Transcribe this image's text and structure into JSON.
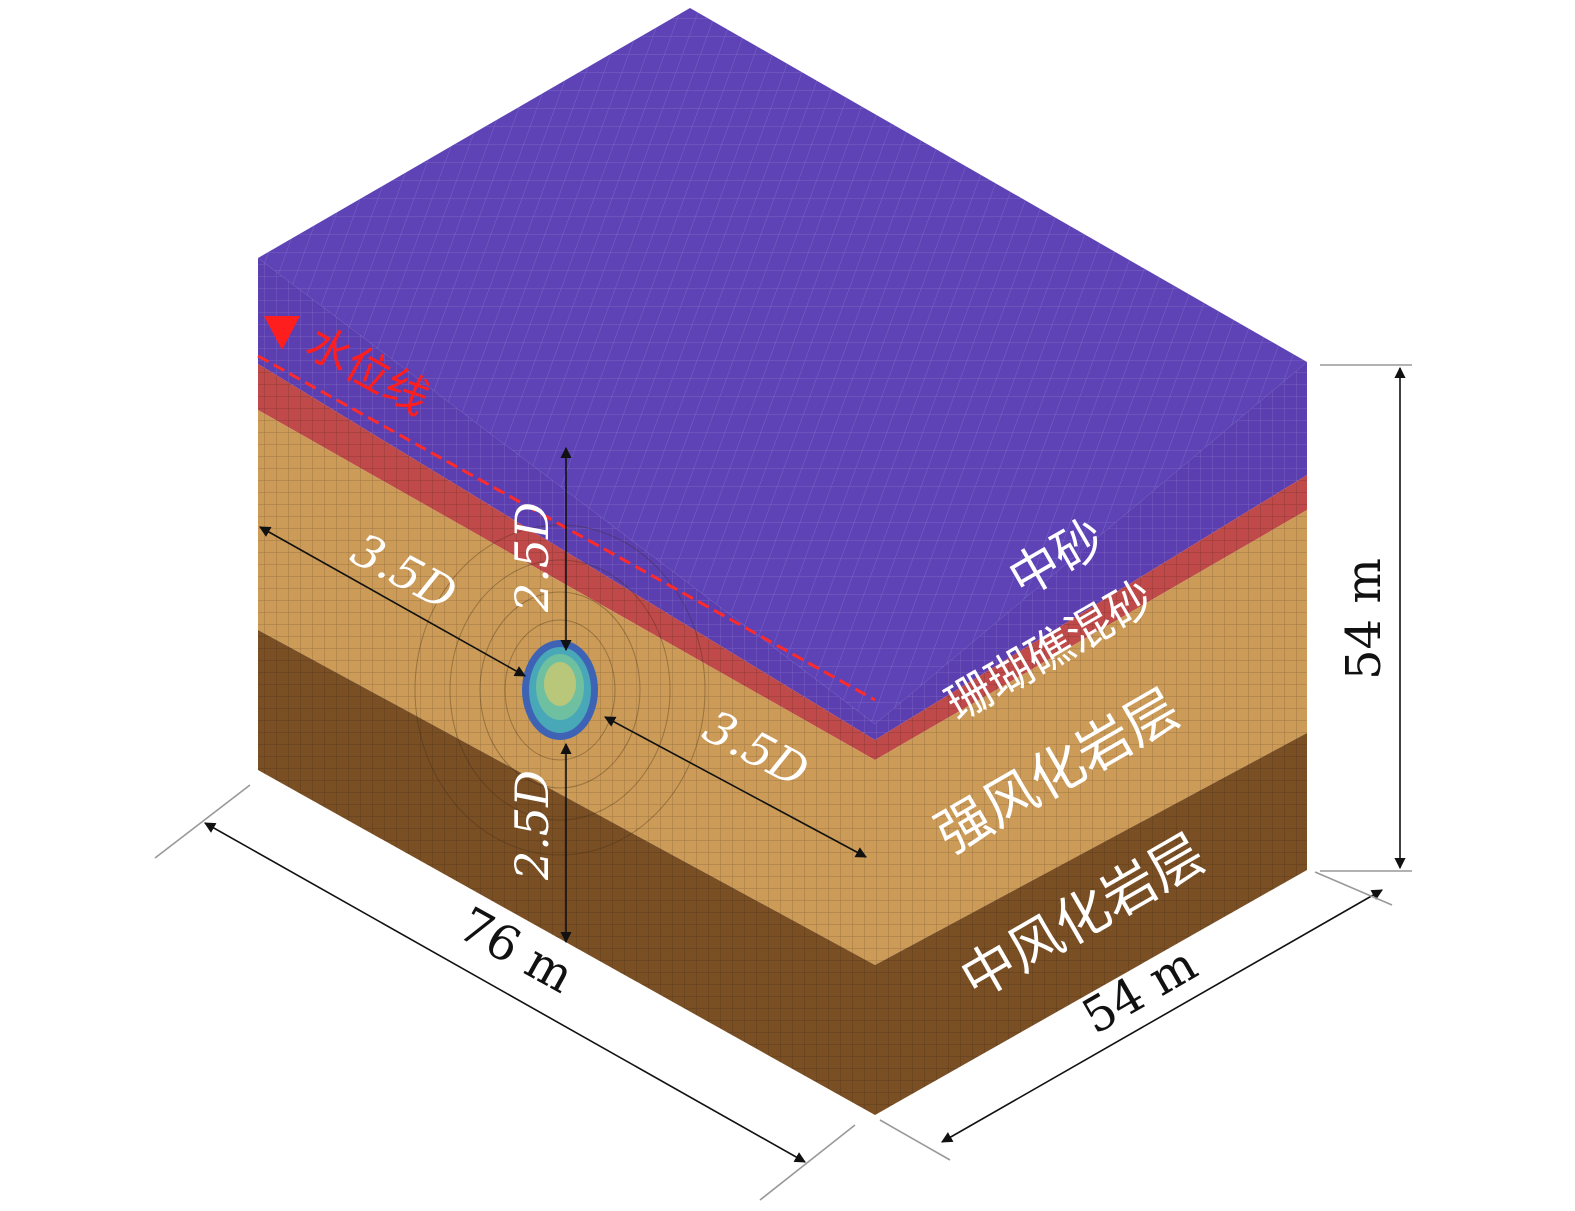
{
  "water_level": {
    "label": "水位线",
    "marker_icon": "triangle-down-icon",
    "color": "#ff1e1e"
  },
  "layers": [
    {
      "key": "medium-sand",
      "label": "中砂",
      "color": "#5b3fb0"
    },
    {
      "key": "coral-reef-sand",
      "label": "珊瑚礁混砂",
      "color": "#c04a4a"
    },
    {
      "key": "strongly-weathered-rock",
      "label": "强风化岩层",
      "color": "#cc9b57"
    },
    {
      "key": "moderately-weathered-rock",
      "label": "中风化岩层",
      "color": "#7a4f24"
    }
  ],
  "dimensions": {
    "length": "76 m",
    "width": "54 m",
    "height": "54 m",
    "above_tunnel": "2.5D",
    "below_tunnel": "2.5D",
    "left_of_tunnel": "3.5D",
    "right_of_tunnel": "3.5D"
  }
}
